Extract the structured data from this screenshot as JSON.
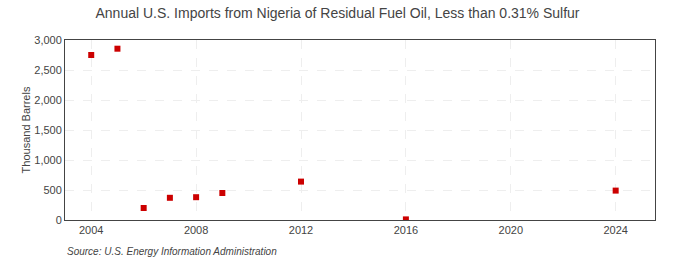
{
  "chart_data": {
    "type": "scatter",
    "title": "Annual U.S. Imports from Nigeria of Residual Fuel Oil, Less than 0.31% Sulfur",
    "ylabel": "Thousand Barrels",
    "annotations": [
      "Source: U.S. Energy Information Administration"
    ],
    "x": [
      2004,
      2005,
      2006,
      2007,
      2008,
      2009,
      2012,
      2016,
      2024
    ],
    "values": [
      2750,
      2855,
      200,
      370,
      380,
      450,
      640,
      10,
      490
    ],
    "color": "#cc0000",
    "marker": "square",
    "xlim": [
      2003,
      2025.5
    ],
    "xticks": [
      2004,
      2008,
      2012,
      2016,
      2020,
      2024
    ],
    "ylim": [
      0,
      3000
    ],
    "yticks": [
      0,
      500,
      {
        "value": 1000,
        "label": "1,000"
      },
      {
        "value": 1500,
        "label": "1,500"
      },
      {
        "value": 2000,
        "label": "2,000"
      },
      {
        "value": 2500,
        "label": "2,500"
      },
      {
        "value": 3000,
        "label": "3,000"
      }
    ],
    "grid": true
  }
}
